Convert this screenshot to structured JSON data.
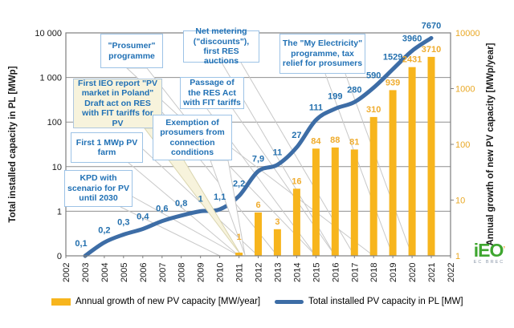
{
  "chart_data": {
    "type": "combo_bar_line",
    "x_years": [
      "2002",
      "2003",
      "2004",
      "2005",
      "2006",
      "2007",
      "2008",
      "2009",
      "2010",
      "2011",
      "2012",
      "2013",
      "2014",
      "2015",
      "2016",
      "2017",
      "2018",
      "2019",
      "2020",
      "2021",
      "2022"
    ],
    "series": [
      {
        "name": "Annual growth of new PV capacity [MW/year]",
        "type": "bar",
        "axis": "right",
        "points": [
          {
            "year": 2011,
            "value": 1,
            "label": "1"
          },
          {
            "year": 2012,
            "value": 6,
            "label": "6"
          },
          {
            "year": 2013,
            "value": 3,
            "label": "3"
          },
          {
            "year": 2014,
            "value": 16,
            "label": "16"
          },
          {
            "year": 2015,
            "value": 84,
            "label": "84"
          },
          {
            "year": 2016,
            "value": 88,
            "label": "88"
          },
          {
            "year": 2017,
            "value": 81,
            "label": "81"
          },
          {
            "year": 2018,
            "value": 310,
            "label": "310"
          },
          {
            "year": 2019,
            "value": 939,
            "label": "939"
          },
          {
            "year": 2020,
            "value": 2431,
            "label": "2431"
          },
          {
            "year": 2021,
            "value": 3710,
            "label": "3710"
          }
        ]
      },
      {
        "name": "Total installed PV capacity in PL [MW]",
        "type": "line",
        "axis": "left",
        "points": [
          {
            "year": 2003,
            "value": 0.1,
            "label": "0,1"
          },
          {
            "year": 2004,
            "value": 0.2,
            "label": "0,2"
          },
          {
            "year": 2005,
            "value": 0.3,
            "label": "0,3"
          },
          {
            "year": 2006,
            "value": 0.4,
            "label": "0,4"
          },
          {
            "year": 2007,
            "value": 0.6,
            "label": "0,6"
          },
          {
            "year": 2008,
            "value": 0.8,
            "label": "0,8"
          },
          {
            "year": 2009,
            "value": 1,
            "label": "1"
          },
          {
            "year": 2010,
            "value": 1.1,
            "label": "1,1"
          },
          {
            "year": 2011,
            "value": 2.2,
            "label": "2,2"
          },
          {
            "year": 2012,
            "value": 7.9,
            "label": "7,9"
          },
          {
            "year": 2013,
            "value": 11,
            "label": "11"
          },
          {
            "year": 2014,
            "value": 27,
            "label": "27"
          },
          {
            "year": 2015,
            "value": 111,
            "label": "111"
          },
          {
            "year": 2016,
            "value": 199,
            "label": "199"
          },
          {
            "year": 2017,
            "value": 280,
            "label": "280"
          },
          {
            "year": 2018,
            "value": 590,
            "label": "590"
          },
          {
            "year": 2019,
            "value": 1529,
            "label": "1529"
          },
          {
            "year": 2020,
            "value": 3960,
            "label": "3960"
          },
          {
            "year": 2021,
            "value": 7670,
            "label": "7670"
          }
        ]
      }
    ],
    "left_axis": {
      "title": "Total installed capacity in PL [MWp]",
      "ticks": [
        "10 000",
        "1 000",
        "100",
        "10",
        "1",
        "0"
      ],
      "scale": "log",
      "min": 0.1,
      "max": 10000
    },
    "right_axis": {
      "title": "Annual growth of new PV capacity [MWp/year]",
      "ticks": [
        "10000",
        "1000",
        "100",
        "10",
        "1"
      ],
      "scale": "log",
      "min": 1,
      "max": 10000
    },
    "grid": true,
    "legend_position": "bottom"
  },
  "annotations": [
    {
      "id": "kpd",
      "text": "KPD with scenario for PV until 2030",
      "points_to_years": [
        2010,
        2011
      ]
    },
    {
      "id": "first-farm",
      "text": "First 1 MWp PV farm",
      "points_to_years": [
        2011,
        2012
      ]
    },
    {
      "id": "first-ieo",
      "text": "First IEO report \"PV market in Poland\" Draft act on RES with FIT tariffs for PV",
      "points_to_years": [
        2012,
        2013
      ]
    },
    {
      "id": "prosumer",
      "text": "\"Prosumer\" programme",
      "points_to_years": [
        2015
      ]
    },
    {
      "id": "net-metering",
      "text": "Net metering (\"discounts\"), first RES auctions",
      "points_to_years": [
        2016,
        2017
      ]
    },
    {
      "id": "passage-res",
      "text": "Passage of the RES Act with FIT tariffs",
      "points_to_years": [
        2015,
        2016
      ]
    },
    {
      "id": "exemption",
      "text": "Exemption of prosumers from connection conditions",
      "points_to_years": [
        2018
      ]
    },
    {
      "id": "my-electricity",
      "text": "The \"My Electricity\" programme, tax relief for prosumers",
      "points_to_years": [
        2019,
        2020
      ]
    }
  ],
  "legend": {
    "items": [
      {
        "label": "Annual growth of new PV capacity  [MW/year]",
        "swatch": "bar"
      },
      {
        "label": "Total installed PV capacity in PL [MW]",
        "swatch": "line"
      }
    ]
  },
  "logo": {
    "text": "iEO",
    "subtext": "EC BREC"
  },
  "colors": {
    "line": "#3D6DA6",
    "bar": "#F7B51D",
    "bar_label": "#EFAC2E",
    "line_label": "#2470AE",
    "grid": "#8F8F8F",
    "border": "#7F7F7F",
    "leader": "#C8C8C8",
    "axis_text": "#1a1a1a",
    "right_axis_text": "#E9A825",
    "callout_border": "#9DC3E6",
    "callout_text": "#2171B5",
    "beige": "#F7F3DC",
    "logo_green": "#3EA62F"
  }
}
